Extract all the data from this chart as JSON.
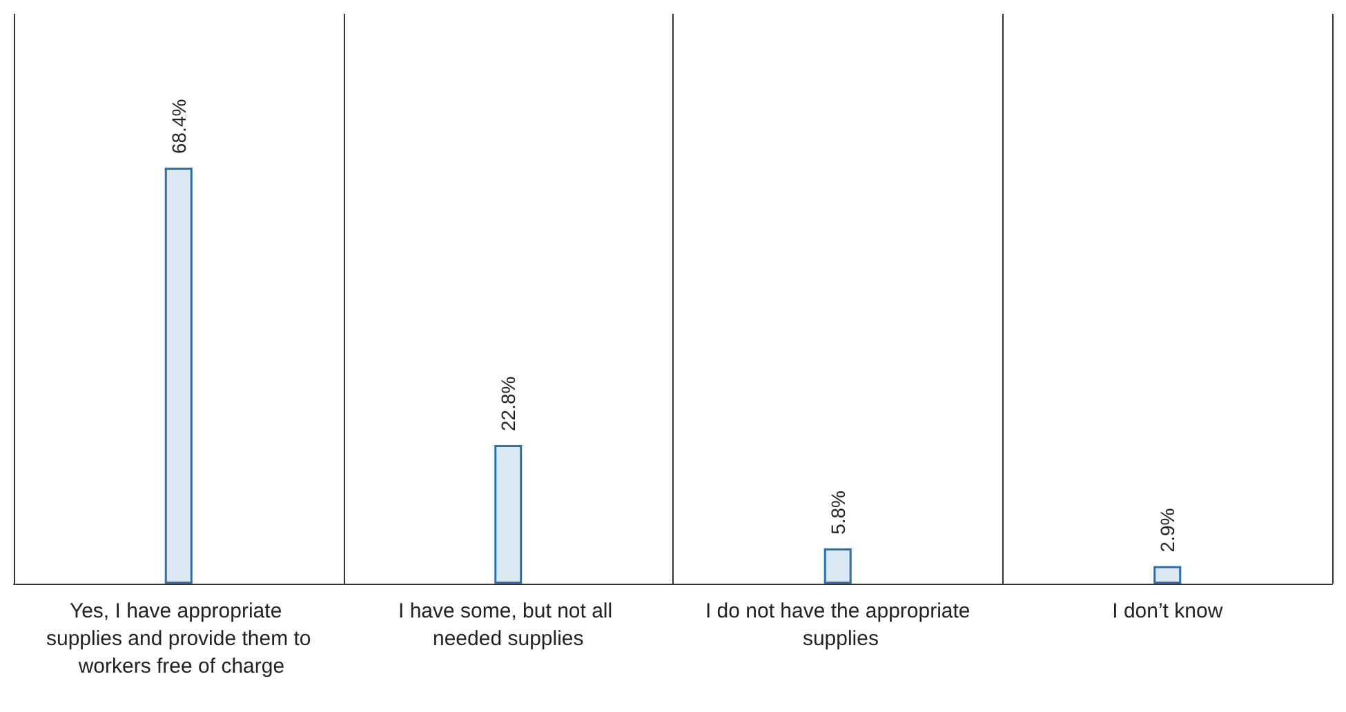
{
  "chart_data": {
    "type": "bar",
    "categories": [
      "Yes, I have appropriate supplies and provide them to workers free of charge",
      "I have some, but not all needed supplies",
      "I do not have the appropriate supplies",
      "I don’t know"
    ],
    "values": [
      68.4,
      22.8,
      5.8,
      2.9
    ],
    "value_labels": [
      "68.4%",
      "22.8%",
      "5.8%",
      "2.9%"
    ],
    "color": "#2670b5",
    "tick_labels": "x",
    "grid": "x"
  }
}
